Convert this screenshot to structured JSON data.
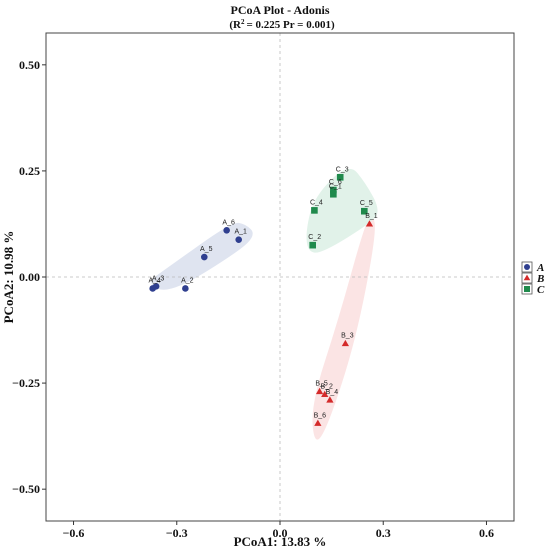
{
  "chart_data": {
    "type": "scatter",
    "title": "PCoA Plot - Adonis",
    "subtitle_parts": [
      "(R",
      "2",
      "= 0.225    Pr = 0.001)"
    ],
    "xlabel": "PCoA1:  13.83 %",
    "ylabel": "PCoA2:  10.98 %",
    "xlim": [
      -0.68,
      0.68
    ],
    "ylim": [
      -0.575,
      0.575
    ],
    "xticks": [
      -0.6,
      -0.3,
      0.0,
      0.3,
      0.6
    ],
    "xtick_labels": [
      "−0.6",
      "−0.3",
      "0.0",
      "0.3",
      "0.6"
    ],
    "yticks": [
      -0.5,
      -0.25,
      0.0,
      0.25,
      0.5
    ],
    "ytick_labels": [
      "−0.50",
      "−0.25",
      "0.00",
      "0.25",
      "0.50"
    ],
    "reference_lines": {
      "x": 0,
      "y": 0
    },
    "legend_position": "right",
    "series": [
      {
        "name": "A",
        "color": "#2f3f8f",
        "marker": "circle",
        "ellipse_fill": "#dde3ef",
        "hull": [
          [
            -0.39,
            -0.015
          ],
          [
            -0.32,
            -0.04
          ],
          [
            -0.12,
            0.06
          ],
          [
            -0.07,
            0.1
          ],
          [
            -0.1,
            0.125
          ],
          [
            -0.14,
            0.13
          ],
          [
            -0.33,
            0.02
          ]
        ],
        "points": [
          {
            "label": "A_1",
            "x": -0.12,
            "y": 0.088
          },
          {
            "label": "A_2",
            "x": -0.275,
            "y": -0.027
          },
          {
            "label": "A_3",
            "x": -0.36,
            "y": -0.022
          },
          {
            "label": "A_4",
            "x": -0.37,
            "y": -0.027
          },
          {
            "label": "A_5",
            "x": -0.22,
            "y": 0.047
          },
          {
            "label": "A_6",
            "x": -0.155,
            "y": 0.11
          }
        ]
      },
      {
        "name": "B",
        "color": "#d42a2a",
        "marker": "triangle",
        "ellipse_fill": "#fbe3e3",
        "hull": [
          [
            0.27,
            0.155
          ],
          [
            0.28,
            0.1
          ],
          [
            0.22,
            -0.15
          ],
          [
            0.14,
            -0.35
          ],
          [
            0.1,
            -0.4
          ],
          [
            0.09,
            -0.3
          ],
          [
            0.17,
            -0.1
          ],
          [
            0.245,
            0.12
          ]
        ],
        "points": [
          {
            "label": "B_1",
            "x": 0.26,
            "y": 0.125
          },
          {
            "label": "B_2",
            "x": 0.13,
            "y": -0.277
          },
          {
            "label": "B_3",
            "x": 0.19,
            "y": -0.157
          },
          {
            "label": "B_4",
            "x": 0.145,
            "y": -0.29
          },
          {
            "label": "B_5",
            "x": 0.115,
            "y": -0.27
          },
          {
            "label": "B_6",
            "x": 0.11,
            "y": -0.345
          }
        ]
      },
      {
        "name": "C",
        "color": "#1f8a4c",
        "marker": "square",
        "ellipse_fill": "#dff1e8",
        "hull": [
          [
            0.08,
            0.06
          ],
          [
            0.075,
            0.11
          ],
          [
            0.1,
            0.19
          ],
          [
            0.2,
            0.27
          ],
          [
            0.25,
            0.22
          ],
          [
            0.29,
            0.16
          ],
          [
            0.27,
            0.13
          ],
          [
            0.12,
            0.055
          ]
        ],
        "points": [
          {
            "label": "C_1",
            "x": 0.155,
            "y": 0.195
          },
          {
            "label": "C_2",
            "x": 0.095,
            "y": 0.075
          },
          {
            "label": "C_3",
            "x": 0.175,
            "y": 0.235
          },
          {
            "label": "C_4",
            "x": 0.1,
            "y": 0.157
          },
          {
            "label": "C_5",
            "x": 0.245,
            "y": 0.155
          },
          {
            "label": "C_6",
            "x": 0.155,
            "y": 0.205
          }
        ]
      }
    ]
  }
}
